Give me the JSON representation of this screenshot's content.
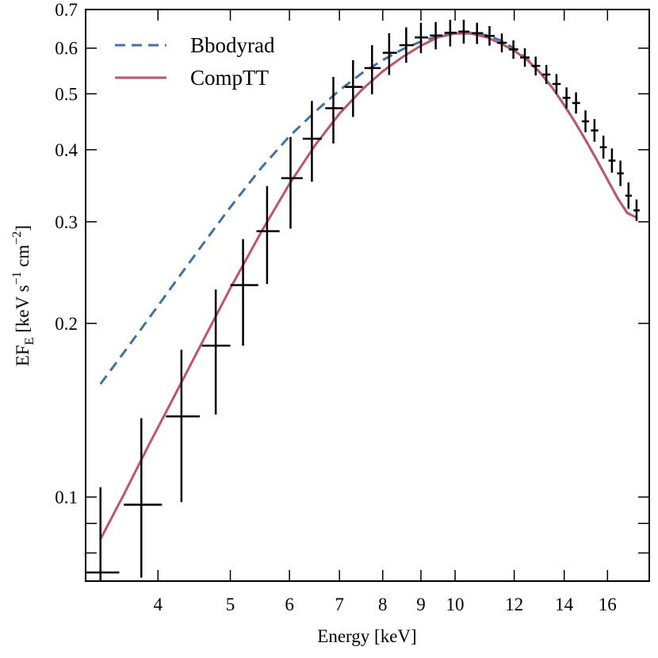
{
  "chart_data": {
    "type": "line",
    "title": "",
    "xlabel": "Energy [keV]",
    "ylabel_parts": {
      "ef": "EF",
      "sub_e": "E",
      "units_a": " [keV s",
      "exp1": "−1",
      "units_b": " cm",
      "exp2": "−2",
      "units_c": "]"
    },
    "xscale": "log",
    "yscale": "log",
    "xlim": [
      3.2,
      18.2
    ],
    "ylim": [
      0.0715,
      0.7
    ],
    "xticks_major": [
      4,
      5,
      6,
      7,
      8,
      9,
      10,
      12,
      14,
      16
    ],
    "xtick_labels": [
      "4",
      "5",
      "6",
      "7",
      "8",
      "9",
      "10",
      "12",
      "14",
      "16"
    ],
    "yticks_labeled": [
      0.1,
      0.2,
      0.3,
      0.4,
      0.5,
      0.6,
      0.7
    ],
    "ytick_labels": [
      "0.1",
      "0.2",
      "0.3",
      "0.4",
      "0.5",
      "0.6",
      "0.7"
    ],
    "yticks_minor": [
      0.08,
      0.09
    ],
    "legend_position": "top-left",
    "series": [
      {
        "name": "Bbodyrad",
        "style": "dashed",
        "color": "#3f73a5",
        "x": [
          3.35,
          3.6,
          3.9,
          4.2,
          4.6,
          5.0,
          5.5,
          6.0,
          6.5,
          7.0,
          7.5,
          8.0,
          8.5,
          9.0,
          9.5,
          10.0,
          10.5,
          11.0,
          11.5,
          12.0,
          12.5,
          13.0,
          13.5,
          14.0,
          14.5,
          15.0,
          15.5,
          16.0,
          16.5,
          17.0,
          17.5
        ],
        "values": [
          0.157,
          0.178,
          0.205,
          0.234,
          0.275,
          0.318,
          0.372,
          0.422,
          0.466,
          0.507,
          0.543,
          0.572,
          0.597,
          0.616,
          0.63,
          0.637,
          0.638,
          0.632,
          0.619,
          0.599,
          0.574,
          0.544,
          0.512,
          0.478,
          0.445,
          0.413,
          0.383,
          0.355,
          0.33,
          0.311,
          0.305
        ]
      },
      {
        "name": "CompTT",
        "style": "solid",
        "color": "#c0546e",
        "x": [
          3.35,
          3.6,
          3.9,
          4.2,
          4.6,
          5.0,
          5.5,
          6.0,
          6.5,
          7.0,
          7.5,
          8.0,
          8.5,
          9.0,
          9.5,
          10.0,
          10.5,
          11.0,
          11.5,
          12.0,
          12.5,
          13.0,
          13.5,
          14.0,
          14.5,
          15.0,
          15.5,
          16.0,
          16.5,
          17.0,
          17.5
        ],
        "values": [
          0.0845,
          0.101,
          0.124,
          0.149,
          0.187,
          0.23,
          0.288,
          0.349,
          0.408,
          0.462,
          0.508,
          0.547,
          0.579,
          0.606,
          0.627,
          0.636,
          0.636,
          0.627,
          0.612,
          0.594,
          0.572,
          0.544,
          0.512,
          0.478,
          0.445,
          0.413,
          0.383,
          0.355,
          0.33,
          0.311,
          0.305
        ]
      }
    ],
    "data_points": {
      "name": "data",
      "color": "#000000",
      "points": [
        {
          "x": 3.35,
          "xlo": 3.2,
          "xhi": 3.55,
          "y": 0.074,
          "ylo": 0.0715,
          "yhi": 0.104
        },
        {
          "x": 3.8,
          "xlo": 3.6,
          "xhi": 4.05,
          "y": 0.097,
          "ylo": 0.0725,
          "yhi": 0.137
        },
        {
          "x": 4.3,
          "xlo": 4.1,
          "xhi": 4.55,
          "y": 0.138,
          "ylo": 0.098,
          "yhi": 0.18
        },
        {
          "x": 4.78,
          "xlo": 4.58,
          "xhi": 5.0,
          "y": 0.183,
          "ylo": 0.139,
          "yhi": 0.229
        },
        {
          "x": 5.2,
          "xlo": 5.0,
          "xhi": 5.45,
          "y": 0.233,
          "ylo": 0.183,
          "yhi": 0.28
        },
        {
          "x": 5.6,
          "xlo": 5.42,
          "xhi": 5.82,
          "y": 0.289,
          "ylo": 0.234,
          "yhi": 0.346
        },
        {
          "x": 6.02,
          "xlo": 5.85,
          "xhi": 6.25,
          "y": 0.357,
          "ylo": 0.292,
          "yhi": 0.421
        },
        {
          "x": 6.43,
          "xlo": 6.25,
          "xhi": 6.63,
          "y": 0.418,
          "ylo": 0.352,
          "yhi": 0.486
        },
        {
          "x": 6.87,
          "xlo": 6.7,
          "xhi": 7.08,
          "y": 0.472,
          "ylo": 0.41,
          "yhi": 0.535
        },
        {
          "x": 7.3,
          "xlo": 7.12,
          "xhi": 7.52,
          "y": 0.514,
          "ylo": 0.456,
          "yhi": 0.572
        },
        {
          "x": 7.74,
          "xlo": 7.56,
          "xhi": 7.95,
          "y": 0.554,
          "ylo": 0.499,
          "yhi": 0.607
        },
        {
          "x": 8.16,
          "xlo": 8.0,
          "xhi": 8.36,
          "y": 0.589,
          "ylo": 0.539,
          "yhi": 0.637
        },
        {
          "x": 8.6,
          "xlo": 8.42,
          "xhi": 8.8,
          "y": 0.607,
          "ylo": 0.566,
          "yhi": 0.652
        },
        {
          "x": 9.0,
          "xlo": 8.83,
          "xhi": 9.2,
          "y": 0.626,
          "ylo": 0.588,
          "yhi": 0.664
        },
        {
          "x": 9.42,
          "xlo": 9.25,
          "xhi": 9.62,
          "y": 0.631,
          "ylo": 0.597,
          "yhi": 0.666
        },
        {
          "x": 9.85,
          "xlo": 9.68,
          "xhi": 10.05,
          "y": 0.638,
          "ylo": 0.604,
          "yhi": 0.672
        },
        {
          "x": 10.27,
          "xlo": 10.1,
          "xhi": 10.45,
          "y": 0.641,
          "ylo": 0.611,
          "yhi": 0.672
        },
        {
          "x": 10.7,
          "xlo": 10.52,
          "xhi": 10.9,
          "y": 0.637,
          "ylo": 0.61,
          "yhi": 0.664
        },
        {
          "x": 11.12,
          "xlo": 10.95,
          "xhi": 11.3,
          "y": 0.63,
          "ylo": 0.606,
          "yhi": 0.655
        },
        {
          "x": 11.55,
          "xlo": 11.38,
          "xhi": 11.73,
          "y": 0.613,
          "ylo": 0.59,
          "yhi": 0.636
        },
        {
          "x": 11.97,
          "xlo": 11.8,
          "xhi": 12.15,
          "y": 0.597,
          "ylo": 0.575,
          "yhi": 0.619
        },
        {
          "x": 12.4,
          "xlo": 12.22,
          "xhi": 12.58,
          "y": 0.578,
          "ylo": 0.557,
          "yhi": 0.6
        },
        {
          "x": 12.82,
          "xlo": 12.65,
          "xhi": 13.0,
          "y": 0.559,
          "ylo": 0.538,
          "yhi": 0.58
        },
        {
          "x": 13.25,
          "xlo": 13.08,
          "xhi": 13.42,
          "y": 0.54,
          "ylo": 0.52,
          "yhi": 0.561
        },
        {
          "x": 13.67,
          "xlo": 13.5,
          "xhi": 13.85,
          "y": 0.52,
          "ylo": 0.5,
          "yhi": 0.541
        },
        {
          "x": 14.1,
          "xlo": 13.93,
          "xhi": 14.27,
          "y": 0.492,
          "ylo": 0.472,
          "yhi": 0.513
        },
        {
          "x": 14.52,
          "xlo": 14.35,
          "xhi": 14.7,
          "y": 0.482,
          "ylo": 0.462,
          "yhi": 0.503
        },
        {
          "x": 14.95,
          "xlo": 14.78,
          "xhi": 15.12,
          "y": 0.448,
          "ylo": 0.429,
          "yhi": 0.468
        },
        {
          "x": 15.37,
          "xlo": 15.2,
          "xhi": 15.55,
          "y": 0.432,
          "ylo": 0.413,
          "yhi": 0.452
        },
        {
          "x": 15.8,
          "xlo": 15.63,
          "xhi": 15.97,
          "y": 0.404,
          "ylo": 0.386,
          "yhi": 0.423
        },
        {
          "x": 16.22,
          "xlo": 16.05,
          "xhi": 16.4,
          "y": 0.383,
          "ylo": 0.365,
          "yhi": 0.402
        },
        {
          "x": 16.65,
          "xlo": 16.48,
          "xhi": 16.82,
          "y": 0.364,
          "ylo": 0.346,
          "yhi": 0.383
        },
        {
          "x": 17.07,
          "xlo": 16.9,
          "xhi": 17.25,
          "y": 0.333,
          "ylo": 0.316,
          "yhi": 0.351
        },
        {
          "x": 17.5,
          "xlo": 17.33,
          "xhi": 17.67,
          "y": 0.314,
          "ylo": 0.301,
          "yhi": 0.328
        }
      ]
    }
  }
}
